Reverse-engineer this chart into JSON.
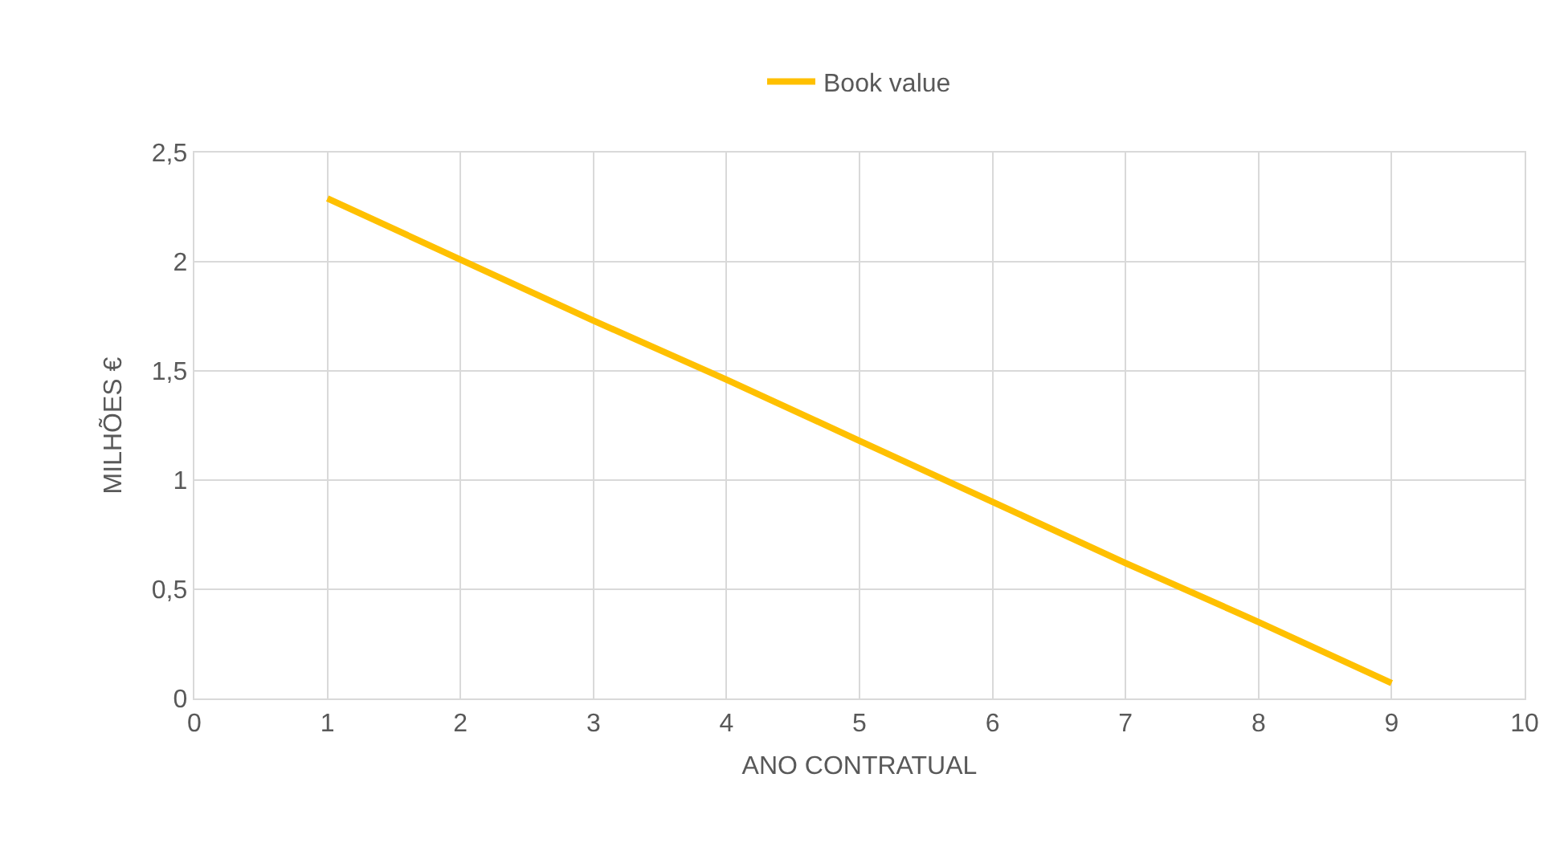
{
  "chart_data": {
    "type": "line",
    "xlabel": "ANO CONTRATUAL",
    "ylabel": "MILHÕES €",
    "x": [
      1,
      2,
      3,
      4,
      5,
      6,
      7,
      8,
      9
    ],
    "series": [
      {
        "name": "Book value",
        "color": "#ffc000",
        "values": [
          2.29,
          2.01,
          1.73,
          1.46,
          1.18,
          0.9,
          0.62,
          0.35,
          0.07
        ]
      }
    ],
    "xlim": [
      0,
      10
    ],
    "xticks": [
      0,
      1,
      2,
      3,
      4,
      5,
      6,
      7,
      8,
      9,
      10
    ],
    "ylim": [
      0,
      2.5
    ],
    "yticks": [
      0,
      {
        "value": 0.5,
        "label": "0,5"
      },
      1,
      {
        "value": 1.5,
        "label": "1,5"
      },
      2,
      {
        "value": 2.5,
        "label": "2,5"
      }
    ],
    "grid": true,
    "legend": "top",
    "marker": "none",
    "line_style": "solid"
  }
}
